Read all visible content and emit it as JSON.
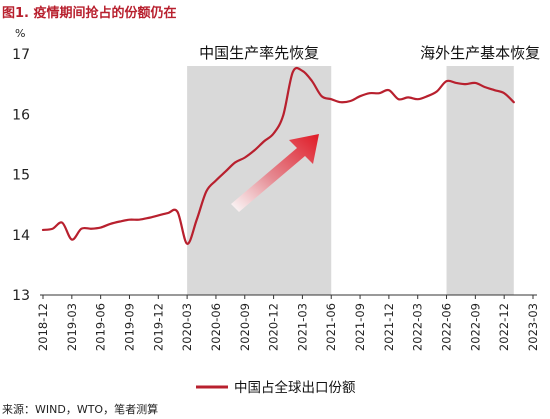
{
  "title": "图1. 疫情期间抢占的份额仍在",
  "source": "来源：WIND，WTO，笔者测算",
  "chart_data": {
    "type": "line",
    "unit": "%",
    "ylim": [
      13,
      17
    ],
    "yticks": [
      "13",
      "14",
      "15",
      "16",
      "17"
    ],
    "xticks": [
      "2018-12",
      "2019-03",
      "2019-06",
      "2019-09",
      "2019-12",
      "2020-03",
      "2020-06",
      "2020-09",
      "2020-12",
      "2021-03",
      "2021-06",
      "2021-09",
      "2021-12",
      "2022-03",
      "2022-06",
      "2022-09",
      "2022-12",
      "2023-03"
    ],
    "shaded_regions": [
      {
        "label": "中国生产率先恢复",
        "from": "2020-03",
        "to": "2021-06"
      },
      {
        "label": "海外生产基本恢复",
        "from": "2022-06",
        "to": "2023-01"
      }
    ],
    "series": [
      {
        "name": "中国占全球出口份额",
        "color": "#b8202e",
        "x": [
          "2018-12",
          "2019-01",
          "2019-02",
          "2019-03",
          "2019-04",
          "2019-05",
          "2019-06",
          "2019-07",
          "2019-08",
          "2019-09",
          "2019-10",
          "2019-11",
          "2019-12",
          "2020-01",
          "2020-02",
          "2020-03",
          "2020-04",
          "2020-05",
          "2020-06",
          "2020-07",
          "2020-08",
          "2020-09",
          "2020-10",
          "2020-11",
          "2020-12",
          "2021-01",
          "2021-02",
          "2021-03",
          "2021-04",
          "2021-05",
          "2021-06",
          "2021-07",
          "2021-08",
          "2021-09",
          "2021-10",
          "2021-11",
          "2021-12",
          "2022-01",
          "2022-02",
          "2022-03",
          "2022-04",
          "2022-05",
          "2022-06",
          "2022-07",
          "2022-08",
          "2022-09",
          "2022-10",
          "2022-11",
          "2022-12",
          "2023-01"
        ],
        "values": [
          14.08,
          14.1,
          14.2,
          13.92,
          14.1,
          14.1,
          14.12,
          14.18,
          14.22,
          14.25,
          14.25,
          14.28,
          14.32,
          14.36,
          14.38,
          13.85,
          14.25,
          14.72,
          14.9,
          15.05,
          15.2,
          15.28,
          15.4,
          15.55,
          15.68,
          15.98,
          16.7,
          16.72,
          16.55,
          16.3,
          16.25,
          16.2,
          16.22,
          16.3,
          16.35,
          16.35,
          16.4,
          16.25,
          16.28,
          16.25,
          16.3,
          16.38,
          16.55,
          16.52,
          16.5,
          16.52,
          16.45,
          16.4,
          16.35,
          16.2
        ]
      }
    ],
    "legend": "bottom"
  }
}
